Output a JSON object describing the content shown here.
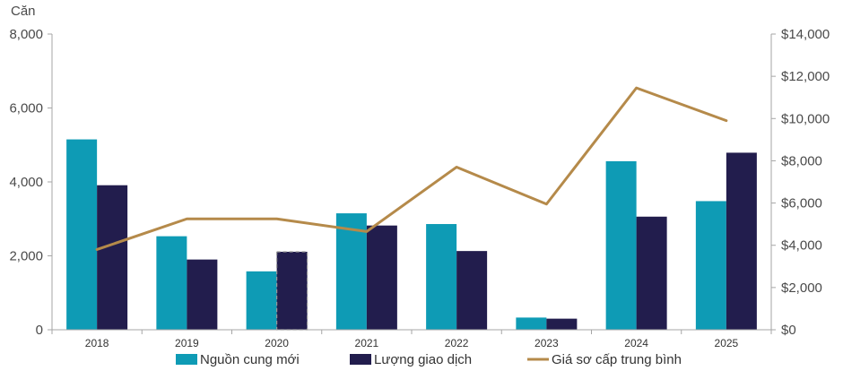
{
  "chart_data": {
    "type": "bar",
    "left_axis_unit": "Căn",
    "categories": [
      "2018",
      "2019",
      "2020",
      "2021",
      "2022",
      "2023",
      "2024",
      "2025"
    ],
    "series": [
      {
        "name": "Nguồn cung mới",
        "type": "bar",
        "axis": "left",
        "color": "#0e9bb5",
        "values": [
          5150,
          2530,
          1580,
          3150,
          2860,
          330,
          4560,
          3480
        ]
      },
      {
        "name": "Lượng giao dịch",
        "type": "bar",
        "axis": "left",
        "color": "#221d4d",
        "values": [
          3910,
          1900,
          2110,
          2820,
          2130,
          300,
          3060,
          4790
        ]
      },
      {
        "name": "Giá sơ cấp trung bình",
        "type": "line",
        "axis": "right",
        "color": "#b58a4a",
        "values": [
          3800,
          5250,
          5250,
          4650,
          7700,
          5950,
          11450,
          9900
        ]
      }
    ],
    "estimated_bars": [
      {
        "series": 1,
        "category": "2020"
      }
    ],
    "left_axis": {
      "ylim": [
        0,
        8000
      ],
      "ticks": [
        "0",
        "2,000",
        "4,000",
        "6,000",
        "8,000"
      ]
    },
    "right_axis": {
      "ylim": [
        0,
        14000
      ],
      "ticks": [
        "$0",
        "$2,000",
        "$4,000",
        "$6,000",
        "$8,000",
        "$10,000",
        "$12,000",
        "$14,000"
      ]
    },
    "legend_position": "bottom",
    "gridlines": false
  }
}
